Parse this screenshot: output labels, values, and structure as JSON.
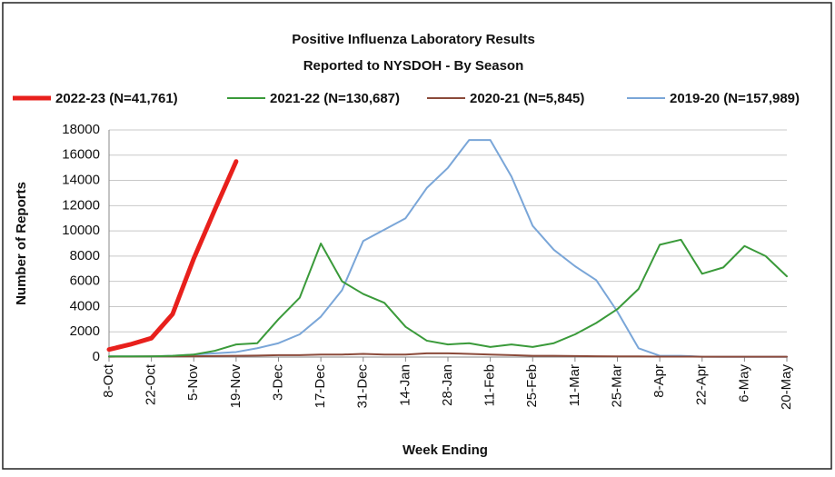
{
  "chart_data": {
    "type": "line",
    "title": [
      "Positive Influenza Laboratory Results",
      "Reported to NYSDOH - By Season"
    ],
    "x_label": "Week Ending",
    "y_label": "Number of Reports",
    "categories": [
      "8-Oct",
      null,
      "22-Oct",
      null,
      "5-Nov",
      null,
      "19-Nov",
      null,
      "3-Dec",
      null,
      "17-Dec",
      null,
      "31-Dec",
      null,
      "14-Jan",
      null,
      "28-Jan",
      null,
      "11-Feb",
      null,
      "25-Feb",
      null,
      "11-Mar",
      null,
      "25-Mar",
      null,
      "8-Apr",
      null,
      "22-Apr",
      null,
      "6-May",
      null,
      "20-May"
    ],
    "ylim": [
      0,
      18000
    ],
    "yticks": [
      0,
      2000,
      4000,
      6000,
      8000,
      10000,
      12000,
      14000,
      16000,
      18000
    ],
    "grid": true,
    "legend": "top",
    "series": [
      {
        "name": "2022-23 (N=41,761)",
        "color": "#e8201c",
        "width": 5,
        "values": [
          600,
          1000,
          1500,
          3400,
          7800,
          11700,
          15500,
          null,
          null,
          null,
          null,
          null,
          null,
          null,
          null,
          null,
          null,
          null,
          null,
          null,
          null,
          null,
          null,
          null,
          null,
          null,
          null,
          null,
          null,
          null,
          null,
          null,
          null
        ]
      },
      {
        "name": "2021-22 (N=130,687)",
        "color": "#3a9a3a",
        "width": 2,
        "values": [
          50,
          50,
          50,
          100,
          200,
          500,
          1000,
          1100,
          3000,
          4700,
          9000,
          6000,
          5000,
          4300,
          2400,
          1300,
          1000,
          1100,
          800,
          1000,
          800,
          1100,
          1800,
          2700,
          3800,
          5400,
          8900,
          9300,
          6600,
          7100,
          8800,
          8000,
          6400
        ]
      },
      {
        "name": "2020-21 (N=5,845)",
        "color": "#8b4a3a",
        "width": 2,
        "values": [
          30,
          40,
          50,
          50,
          60,
          80,
          100,
          120,
          150,
          150,
          200,
          200,
          250,
          200,
          200,
          300,
          300,
          250,
          200,
          150,
          100,
          100,
          80,
          60,
          50,
          50,
          40,
          40,
          30,
          30,
          30,
          30,
          30
        ]
      },
      {
        "name": "2019-20 (N=157,989)",
        "color": "#7aa6d8",
        "width": 2,
        "values": [
          50,
          50,
          50,
          100,
          200,
          300,
          400,
          700,
          1100,
          1800,
          3200,
          5300,
          9200,
          10100,
          11000,
          13400,
          15000,
          17200,
          17200,
          14300,
          10400,
          8500,
          7200,
          6100,
          3600,
          700,
          100,
          100,
          30,
          20,
          20,
          20,
          20
        ]
      }
    ]
  }
}
